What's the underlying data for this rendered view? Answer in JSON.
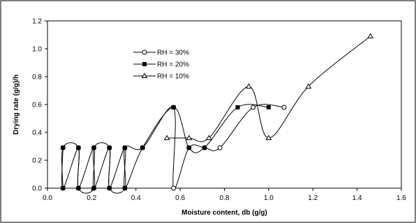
{
  "chart_data": {
    "type": "line",
    "title": "",
    "xlabel": "Moisture content, db (g/g)",
    "ylabel": "Drying rate (g/g)/h",
    "xlim": [
      0,
      1.6
    ],
    "ylim": [
      0,
      1.2
    ],
    "xticks": [
      0.0,
      0.2,
      0.4,
      0.6,
      0.8,
      1.0,
      1.2,
      1.4,
      1.6
    ],
    "yticks": [
      0.0,
      0.2,
      0.4,
      0.6,
      0.8,
      1.0,
      1.2
    ],
    "xtick_labels": [
      "0.0",
      "0.2",
      "0.4",
      "0.6",
      "0.8",
      "1.0",
      "1.2",
      "1.4",
      "1.6"
    ],
    "ytick_labels": [
      "0.0",
      "0.2",
      "0.4",
      "0.6",
      "0.8",
      "1.0",
      "1.2"
    ],
    "grid": false,
    "legend_position": "upper-left",
    "series": [
      {
        "name": "RH = 30%",
        "marker": "circle-open",
        "points": [
          [
            0.07,
            0.0
          ],
          [
            0.07,
            0.29
          ],
          [
            0.14,
            0.29
          ],
          [
            0.14,
            0.0
          ],
          [
            0.21,
            0.0
          ],
          [
            0.21,
            0.29
          ],
          [
            0.28,
            0.29
          ],
          [
            0.28,
            0.0
          ],
          [
            0.35,
            0.0
          ],
          [
            0.35,
            0.29
          ],
          [
            0.43,
            0.29
          ],
          [
            0.57,
            0.58
          ],
          [
            0.57,
            0.0
          ],
          [
            0.64,
            0.29
          ],
          [
            0.71,
            0.29
          ],
          [
            0.78,
            0.29
          ],
          [
            0.93,
            0.58
          ],
          [
            1.07,
            0.58
          ]
        ]
      },
      {
        "name": "RH = 20%",
        "marker": "square-filled",
        "points": [
          [
            0.07,
            0.29
          ],
          [
            0.07,
            0.0
          ],
          [
            0.14,
            0.29
          ],
          [
            0.14,
            0.0
          ],
          [
            0.21,
            0.29
          ],
          [
            0.21,
            0.0
          ],
          [
            0.28,
            0.29
          ],
          [
            0.28,
            0.0
          ],
          [
            0.35,
            0.29
          ],
          [
            0.35,
            0.0
          ],
          [
            0.43,
            0.29
          ],
          [
            0.57,
            0.58
          ],
          [
            0.64,
            0.29
          ],
          [
            0.71,
            0.29
          ],
          [
            0.86,
            0.58
          ],
          [
            1.0,
            0.58
          ]
        ]
      },
      {
        "name": "RH = 10%",
        "marker": "triangle-open",
        "points": [
          [
            0.54,
            0.36
          ],
          [
            0.64,
            0.36
          ],
          [
            0.73,
            0.36
          ],
          [
            0.91,
            0.73
          ],
          [
            1.0,
            0.36
          ],
          [
            1.18,
            0.73
          ],
          [
            1.46,
            1.09
          ]
        ]
      }
    ]
  }
}
